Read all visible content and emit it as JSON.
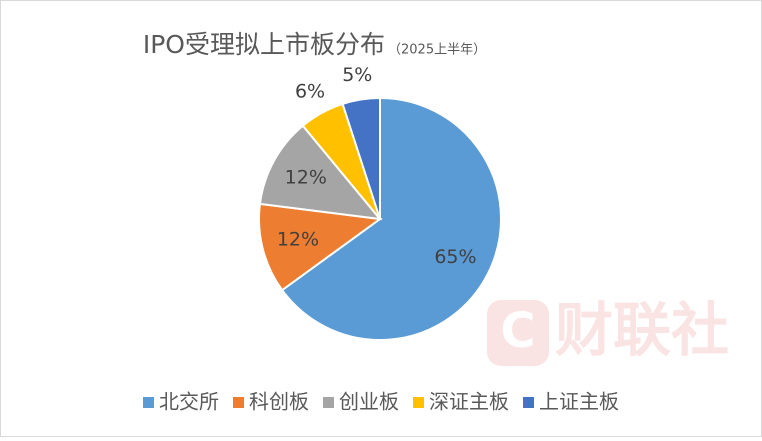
{
  "chart_data": {
    "type": "pie",
    "title": "IPO受理拟上市板分布",
    "subtitle": "（2025上半年）",
    "categories": [
      "北交所",
      "科创板",
      "创业板",
      "深证主板",
      "上证主板"
    ],
    "values": [
      65,
      12,
      12,
      6,
      5
    ],
    "value_labels": [
      "65%",
      "12%",
      "12%",
      "6%",
      "5%"
    ],
    "colors": [
      "#5b9bd5",
      "#ed7d31",
      "#a5a5a5",
      "#ffc000",
      "#4472c4"
    ],
    "legend": "bottom"
  },
  "watermark": "财联社"
}
